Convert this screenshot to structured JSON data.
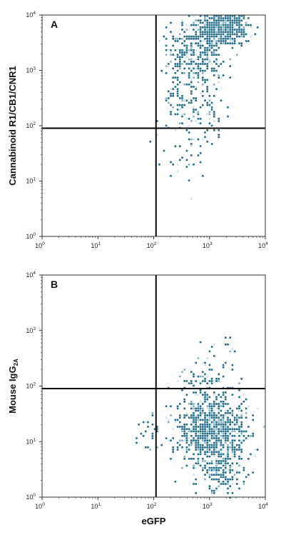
{
  "chart_data": [
    {
      "type": "scatter",
      "panel_label": "A",
      "xscale": "log",
      "yscale": "log",
      "xlim": [
        1,
        10000
      ],
      "ylim": [
        1,
        10000
      ],
      "xticks": [
        {
          "base": "10",
          "exp": "0"
        },
        {
          "base": "10",
          "exp": "1"
        },
        {
          "base": "10",
          "exp": "2"
        },
        {
          "base": "10",
          "exp": "3"
        },
        {
          "base": "10",
          "exp": "4"
        }
      ],
      "yticks": [
        {
          "base": "10",
          "exp": "0"
        },
        {
          "base": "10",
          "exp": "1"
        },
        {
          "base": "10",
          "exp": "2"
        },
        {
          "base": "10",
          "exp": "3"
        },
        {
          "base": "10",
          "exp": "4"
        }
      ],
      "xlabel": "",
      "ylabel": "Cannabinoid R1/CB1/CNR1",
      "ylabel_sub": "",
      "quadrant_x": 110,
      "quadrant_y": 90,
      "point_color": "#1f6b8a",
      "clusters": [
        {
          "cx": 1600,
          "cy": 6000,
          "sx": 0.22,
          "sy": 0.16,
          "n": 650
        },
        {
          "cx": 600,
          "cy": 1800,
          "sx": 0.26,
          "sy": 0.28,
          "n": 260
        },
        {
          "cx": 500,
          "cy": 250,
          "sx": 0.3,
          "sy": 0.3,
          "n": 140
        },
        {
          "cx": 280,
          "cy": 1300,
          "sx": 0.22,
          "sy": 0.2,
          "n": 50
        },
        {
          "cx": 350,
          "cy": 30,
          "sx": 0.25,
          "sy": 0.25,
          "n": 35
        }
      ]
    },
    {
      "type": "scatter",
      "panel_label": "B",
      "xscale": "log",
      "yscale": "log",
      "xlim": [
        1,
        10000
      ],
      "ylim": [
        1,
        10000
      ],
      "xticks": [
        {
          "base": "10",
          "exp": "0"
        },
        {
          "base": "10",
          "exp": "1"
        },
        {
          "base": "10",
          "exp": "2"
        },
        {
          "base": "10",
          "exp": "3"
        },
        {
          "base": "10",
          "exp": "4"
        }
      ],
      "yticks": [
        {
          "base": "10",
          "exp": "0"
        },
        {
          "base": "10",
          "exp": "1"
        },
        {
          "base": "10",
          "exp": "2"
        },
        {
          "base": "10",
          "exp": "3"
        },
        {
          "base": "10",
          "exp": "4"
        }
      ],
      "xlabel": "eGFP",
      "ylabel": "Mouse IgG",
      "ylabel_sub": "2A",
      "quadrant_x": 110,
      "quadrant_y": 90,
      "point_color": "#1f6b8a",
      "clusters": [
        {
          "cx": 1100,
          "cy": 15,
          "sx": 0.3,
          "sy": 0.32,
          "n": 900
        },
        {
          "cx": 1700,
          "cy": 3,
          "sx": 0.2,
          "sy": 0.25,
          "n": 180
        },
        {
          "cx": 900,
          "cy": 110,
          "sx": 0.28,
          "sy": 0.25,
          "n": 90
        },
        {
          "cx": 90,
          "cy": 12,
          "sx": 0.15,
          "sy": 0.2,
          "n": 30
        },
        {
          "cx": 1500,
          "cy": 400,
          "sx": 0.2,
          "sy": 0.15,
          "n": 12
        }
      ]
    }
  ]
}
